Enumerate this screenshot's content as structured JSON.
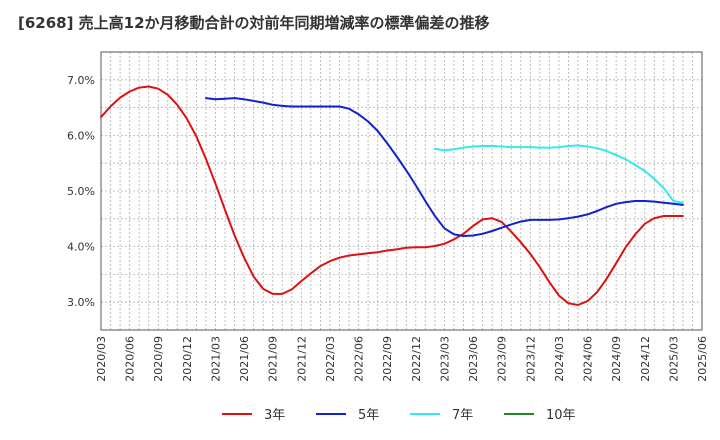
{
  "chart_data": {
    "type": "line",
    "title": "[6268]  売上高12か月移動合計の対前年同期増減率の標準偏差の推移",
    "xlabel": "",
    "ylabel": "",
    "ylim": [
      2.5,
      7.5
    ],
    "y_ticks": [
      3.0,
      4.0,
      5.0,
      6.0,
      7.0
    ],
    "y_tick_labels": [
      "3.0%",
      "4.0%",
      "5.0%",
      "6.0%",
      "7.0%"
    ],
    "x_tick_labels": [
      "2020/03",
      "2020/06",
      "2020/09",
      "2020/12",
      "2021/03",
      "2021/06",
      "2021/09",
      "2021/12",
      "2022/03",
      "2022/06",
      "2022/09",
      "2022/12",
      "2023/03",
      "2023/06",
      "2023/09",
      "2023/12",
      "2024/03",
      "2024/06",
      "2024/09",
      "2024/12",
      "2025/03",
      "2025/06"
    ],
    "x_range": [
      0,
      63
    ],
    "grid": true,
    "legend_position": "bottom",
    "series": [
      {
        "name": "3年",
        "color": "#dd1111",
        "x": [
          0,
          1,
          2,
          3,
          4,
          5,
          6,
          7,
          8,
          9,
          10,
          11,
          12,
          13,
          14,
          15,
          16,
          17,
          18,
          19,
          20,
          21,
          22,
          23,
          24,
          25,
          26,
          27,
          28,
          29,
          30,
          31,
          32,
          33,
          34,
          35,
          36,
          37,
          38,
          39,
          40,
          41,
          42,
          43,
          44,
          45,
          46,
          47,
          48,
          49,
          50,
          51,
          52,
          53,
          54,
          55,
          56,
          57,
          58,
          59,
          60,
          61
        ],
        "values": [
          6.33,
          6.52,
          6.68,
          6.79,
          6.86,
          6.88,
          6.84,
          6.73,
          6.55,
          6.3,
          5.98,
          5.58,
          5.13,
          4.66,
          4.2,
          3.8,
          3.46,
          3.24,
          3.15,
          3.15,
          3.23,
          3.38,
          3.52,
          3.65,
          3.74,
          3.8,
          3.84,
          3.86,
          3.88,
          3.9,
          3.93,
          3.95,
          3.98,
          3.99,
          3.99,
          4.01,
          4.05,
          4.13,
          4.23,
          4.37,
          4.49,
          4.51,
          4.44,
          4.27,
          4.08,
          3.87,
          3.63,
          3.36,
          3.12,
          2.98,
          2.95,
          3.02,
          3.18,
          3.42,
          3.7,
          3.99,
          4.22,
          4.41,
          4.51,
          4.55,
          4.55,
          4.55
        ]
      },
      {
        "name": "5年",
        "color": "#1122cc",
        "x": [
          11,
          12,
          13,
          14,
          15,
          16,
          17,
          18,
          19,
          20,
          21,
          22,
          23,
          24,
          25,
          26,
          27,
          28,
          29,
          30,
          31,
          32,
          33,
          34,
          35,
          36,
          37,
          38,
          39,
          40,
          41,
          42,
          43,
          44,
          45,
          46,
          47,
          48,
          49,
          50,
          51,
          52,
          53,
          54,
          55,
          56,
          57,
          58,
          59,
          60,
          61
        ],
        "values": [
          6.67,
          6.65,
          6.66,
          6.67,
          6.65,
          6.62,
          6.59,
          6.55,
          6.53,
          6.52,
          6.52,
          6.52,
          6.52,
          6.52,
          6.52,
          6.48,
          6.38,
          6.25,
          6.08,
          5.86,
          5.62,
          5.37,
          5.1,
          4.82,
          4.55,
          4.33,
          4.22,
          4.19,
          4.2,
          4.23,
          4.28,
          4.34,
          4.4,
          4.45,
          4.48,
          4.48,
          4.48,
          4.49,
          4.51,
          4.54,
          4.58,
          4.64,
          4.71,
          4.77,
          4.8,
          4.82,
          4.82,
          4.81,
          4.79,
          4.77,
          4.75
        ]
      },
      {
        "name": "7年",
        "color": "#33e8ee",
        "x": [
          35,
          36,
          37,
          38,
          39,
          40,
          41,
          42,
          43,
          44,
          45,
          46,
          47,
          48,
          49,
          50,
          51,
          52,
          53,
          54,
          55,
          56,
          57,
          58,
          59,
          60,
          61
        ],
        "values": [
          5.76,
          5.73,
          5.75,
          5.78,
          5.8,
          5.81,
          5.81,
          5.8,
          5.79,
          5.79,
          5.79,
          5.78,
          5.78,
          5.79,
          5.81,
          5.82,
          5.8,
          5.77,
          5.72,
          5.65,
          5.57,
          5.47,
          5.36,
          5.22,
          5.05,
          4.82,
          4.79
        ]
      },
      {
        "name": "10年",
        "color": "#228822",
        "x": [],
        "values": []
      }
    ]
  }
}
